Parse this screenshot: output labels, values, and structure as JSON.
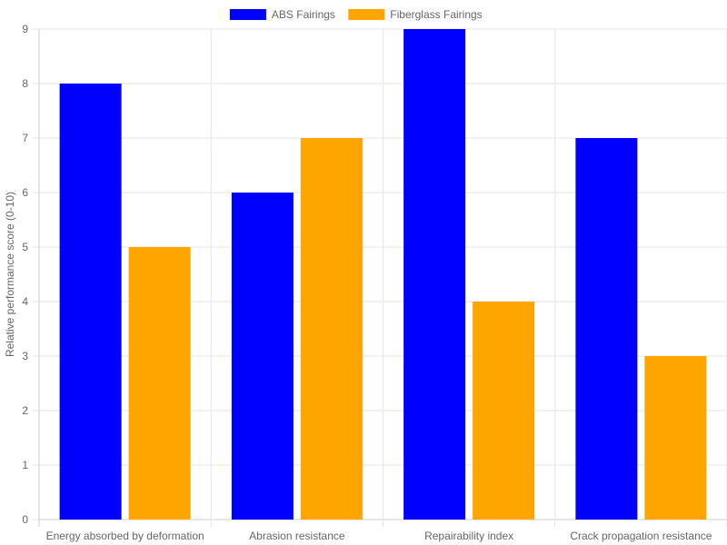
{
  "chart_data": {
    "type": "bar",
    "categories": [
      "Energy absorbed by deformation",
      "Abrasion resistance",
      "Repairability index",
      "Crack propagation resistance"
    ],
    "series": [
      {
        "name": "ABS Fairings",
        "values": [
          8,
          6,
          9,
          7
        ],
        "color": "#0000ff"
      },
      {
        "name": "Fiberglass Fairings",
        "values": [
          5,
          7,
          4,
          3
        ],
        "color": "#ffa500"
      }
    ],
    "title": "",
    "xlabel": "",
    "ylabel": "Relative performance score (0-10)",
    "ylim": [
      0,
      9
    ],
    "yticks": [
      0,
      1,
      2,
      3,
      4,
      5,
      6,
      7,
      8,
      9
    ],
    "grid": true,
    "legend": "top-center"
  }
}
